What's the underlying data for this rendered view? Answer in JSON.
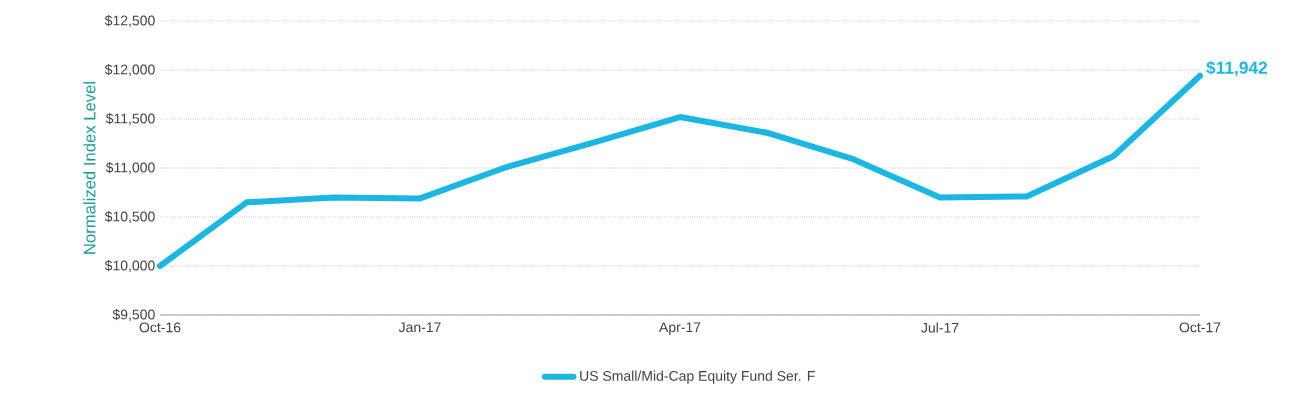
{
  "chart_data": {
    "type": "line",
    "ylabel": "Normalized Index Level",
    "x": [
      "2016-10",
      "2016-11",
      "2016-12",
      "2017-01",
      "2017-02",
      "2017-03",
      "2017-04",
      "2017-05",
      "2017-06",
      "2017-07",
      "2017-08",
      "2017-09",
      "2017-10"
    ],
    "series": [
      {
        "name": "US Small/Mid-Cap Equity Fund Ser. F",
        "color": "#1bb7e2",
        "values": [
          10000,
          10650,
          10700,
          10690,
          11010,
          11260,
          11520,
          11360,
          11090,
          10700,
          10710,
          11120,
          11942
        ]
      }
    ],
    "xlim": [
      "2016-10",
      "2017-10"
    ],
    "xticks": [
      {
        "value": "2016-10",
        "label": "Oct-16"
      },
      {
        "value": "2017-01",
        "label": "Jan-17"
      },
      {
        "value": "2017-04",
        "label": "Apr-17"
      },
      {
        "value": "2017-07",
        "label": "Jul-17"
      },
      {
        "value": "2017-10",
        "label": "Oct-17"
      }
    ],
    "ylim": [
      9500,
      12500
    ],
    "yticks": [
      {
        "value": 9500,
        "label": "$9,500"
      },
      {
        "value": 10000,
        "label": "$10,000"
      },
      {
        "value": 10500,
        "label": "$10,500"
      },
      {
        "value": 11000,
        "label": "$11,000"
      },
      {
        "value": 11500,
        "label": "$11,500"
      },
      {
        "value": 12000,
        "label": "$12,000"
      },
      {
        "value": 12500,
        "label": "$12,500"
      }
    ],
    "annotations": [
      {
        "text": "$11,942",
        "x": "2017-10",
        "y": 11942
      }
    ],
    "grid": "y",
    "legend": "bottom",
    "marker": "none",
    "line_style": "solid"
  }
}
